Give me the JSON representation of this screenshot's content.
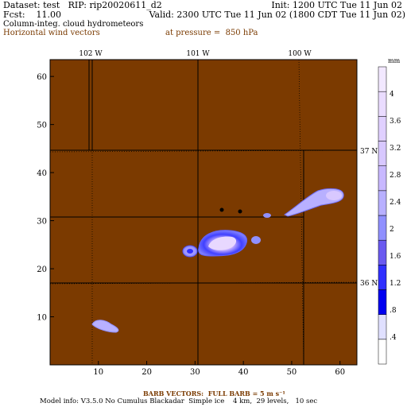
{
  "header": {
    "dataset": "Dataset: test   RIP: rip20020611_d2",
    "init": "Init: 1200 UTC Tue 11 Jun 02",
    "fcst": "Fcst:    11.00",
    "valid": "Valid: 2300 UTC Tue 11 Jun 02 (1800 CDT Tue 11 Jun 02)",
    "field1": "Column-integ. cloud hydrometeors",
    "field2": "Horizontal wind vectors",
    "pressure": "at pressure =  850 hPa"
  },
  "footer": {
    "barb": "BARB VECTORS:  FULL BARB = 5 m s⁻¹",
    "model": "Model info: V3.5.0 No Cumulus Blackadar  Simple ice    4 km,  29 levels,   10 sec"
  },
  "map": {
    "background_color": "#7b3a00",
    "x_ticks": [
      "10",
      "20",
      "30",
      "40",
      "50",
      "60"
    ],
    "y_ticks": [
      "10",
      "20",
      "30",
      "40",
      "50",
      "60"
    ],
    "lon_labels": [
      "102 W",
      "101 W",
      "100 W"
    ],
    "lat_labels": [
      "37 N",
      "36 N"
    ],
    "colorbar": {
      "unit": "mm",
      "labels": [
        ".4",
        ".8",
        "1.2",
        "1.6",
        "2",
        "2.4",
        "2.8",
        "3.2",
        "3.6",
        "4"
      ],
      "colors": [
        "#ffffff",
        "#e0e0ff",
        "#0000f0",
        "#3030ff",
        "#6a5af0",
        "#9090ff",
        "#b8b0ff",
        "#c8b8ff",
        "#d8c8ff",
        "#e0d0ff",
        "#eadcff",
        "#f2e8ff"
      ]
    }
  }
}
